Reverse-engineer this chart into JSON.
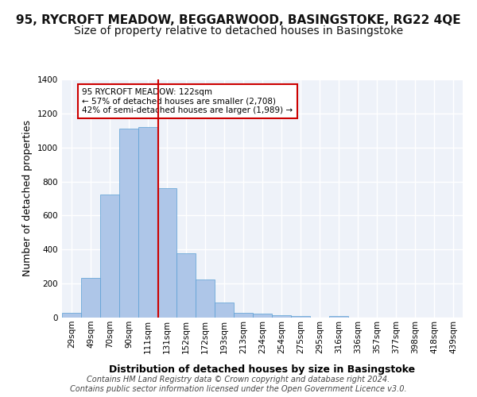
{
  "title1": "95, RYCROFT MEADOW, BEGGARWOOD, BASINGSTOKE, RG22 4QE",
  "title2": "Size of property relative to detached houses in Basingstoke",
  "xlabel": "Distribution of detached houses by size in Basingstoke",
  "ylabel": "Number of detached properties",
  "footer1": "Contains HM Land Registry data © Crown copyright and database right 2024.",
  "footer2": "Contains public sector information licensed under the Open Government Licence v3.0.",
  "bin_labels": [
    "29sqm",
    "49sqm",
    "70sqm",
    "90sqm",
    "111sqm",
    "131sqm",
    "152sqm",
    "172sqm",
    "193sqm",
    "213sqm",
    "234sqm",
    "254sqm",
    "275sqm",
    "295sqm",
    "316sqm",
    "336sqm",
    "357sqm",
    "377sqm",
    "398sqm",
    "418sqm",
    "439sqm"
  ],
  "bar_heights": [
    30,
    235,
    725,
    1110,
    1120,
    760,
    380,
    225,
    90,
    30,
    25,
    15,
    10,
    0,
    10,
    0,
    0,
    0,
    0,
    0,
    0
  ],
  "bar_color": "#aec6e8",
  "bar_edge_color": "#5a9fd4",
  "vline_x": 4,
  "vline_color": "#cc0000",
  "annotation_text": "95 RYCROFT MEADOW: 122sqm\n← 57% of detached houses are smaller (2,708)\n42% of semi-detached houses are larger (1,989) →",
  "annotation_box_color": "#ffffff",
  "annotation_box_edgecolor": "#cc0000",
  "ylim": [
    0,
    1400
  ],
  "background_color": "#eef2f9",
  "grid_color": "#ffffff",
  "title1_fontsize": 11,
  "title2_fontsize": 10,
  "xlabel_fontsize": 9,
  "ylabel_fontsize": 9,
  "tick_fontsize": 7.5,
  "footer_fontsize": 7
}
